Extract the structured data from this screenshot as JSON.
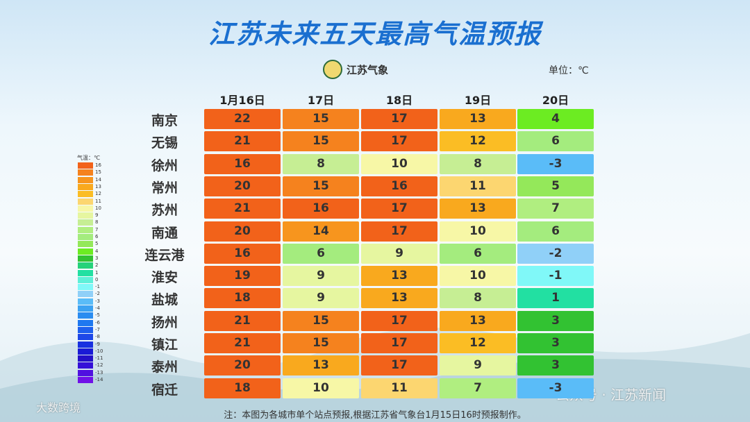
{
  "title": "江苏未来五天最高气温预报",
  "logo": "江苏气象",
  "unit": "单位：℃",
  "table": {
    "columns": [
      "1月16日",
      "17日",
      "18日",
      "19日",
      "20日"
    ],
    "rows": [
      {
        "city": "南京",
        "values": [
          22,
          15,
          17,
          13,
          4
        ]
      },
      {
        "city": "无锡",
        "values": [
          21,
          15,
          17,
          12,
          6
        ]
      },
      {
        "city": "徐州",
        "values": [
          16,
          8,
          10,
          8,
          -3
        ]
      },
      {
        "city": "常州",
        "values": [
          20,
          15,
          16,
          11,
          5
        ]
      },
      {
        "city": "苏州",
        "values": [
          21,
          16,
          17,
          13,
          7
        ]
      },
      {
        "city": "南通",
        "values": [
          20,
          14,
          17,
          10,
          6
        ]
      },
      {
        "city": "连云港",
        "values": [
          16,
          6,
          9,
          6,
          -2
        ]
      },
      {
        "city": "淮安",
        "values": [
          19,
          9,
          13,
          10,
          -1
        ]
      },
      {
        "city": "盐城",
        "values": [
          18,
          9,
          13,
          8,
          1
        ]
      },
      {
        "city": "扬州",
        "values": [
          21,
          15,
          17,
          13,
          3
        ]
      },
      {
        "city": "镇江",
        "values": [
          21,
          15,
          17,
          12,
          3
        ]
      },
      {
        "city": "泰州",
        "values": [
          20,
          13,
          17,
          9,
          3
        ]
      },
      {
        "city": "宿迁",
        "values": [
          18,
          10,
          11,
          7,
          -3
        ]
      }
    ]
  },
  "legend": {
    "title": "气温：℃",
    "items": [
      {
        "value": 16,
        "color": "#f2621a"
      },
      {
        "value": 15,
        "color": "#f5821e"
      },
      {
        "value": 14,
        "color": "#f7951e"
      },
      {
        "value": 13,
        "color": "#f9a91e"
      },
      {
        "value": 12,
        "color": "#fbbd24"
      },
      {
        "value": 11,
        "color": "#fcd670"
      },
      {
        "value": 10,
        "color": "#f7f7a6"
      },
      {
        "value": 9,
        "color": "#e6f6a0"
      },
      {
        "value": 8,
        "color": "#c6ee94"
      },
      {
        "value": 7,
        "color": "#b0ee80"
      },
      {
        "value": 6,
        "color": "#a4ec7e"
      },
      {
        "value": 5,
        "color": "#94e85a"
      },
      {
        "value": 4,
        "color": "#6cec22"
      },
      {
        "value": 3,
        "color": "#32c232"
      },
      {
        "value": 2,
        "color": "#26d27a"
      },
      {
        "value": 1,
        "color": "#22e0a2"
      },
      {
        "value": 0,
        "color": "#5ef0d8"
      },
      {
        "value": -1,
        "color": "#80f8f8"
      },
      {
        "value": -2,
        "color": "#90d0f8"
      },
      {
        "value": -3,
        "color": "#5abcf8"
      },
      {
        "value": -4,
        "color": "#3ca2f2"
      },
      {
        "value": -5,
        "color": "#2a8cf0"
      },
      {
        "value": -6,
        "color": "#1e78f0"
      },
      {
        "value": -7,
        "color": "#1e60ee"
      },
      {
        "value": -8,
        "color": "#1e48e8"
      },
      {
        "value": -9,
        "color": "#1830e0"
      },
      {
        "value": -10,
        "color": "#1a1ad6"
      },
      {
        "value": -11,
        "color": "#2410c8"
      },
      {
        "value": -12,
        "color": "#3410d8"
      },
      {
        "value": -13,
        "color": "#5010e0"
      },
      {
        "value": -14,
        "color": "#7010e8"
      }
    ]
  },
  "note": "注：本图为各城市单个站点预报,根据江苏省气象台1月15日16时预报制作。",
  "watermarks": [
    "公众号 · 江苏新闻",
    "大数跨境"
  ]
}
